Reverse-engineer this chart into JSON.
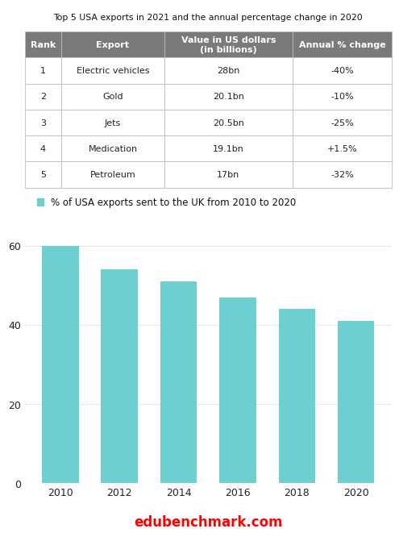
{
  "title": "Top 5 USA exports in 2021 and the annual percentage change in 2020",
  "table_headers": [
    "Rank",
    "Export",
    "Value in US dollars\n(in billions)",
    "Annual % change"
  ],
  "table_rows": [
    [
      "1",
      "Electric vehicles",
      "28bn",
      "-40%"
    ],
    [
      "2",
      "Gold",
      "20.1bn",
      "-10%"
    ],
    [
      "3",
      "Jets",
      "20.5bn",
      "-25%"
    ],
    [
      "4",
      "Medication",
      "19.1bn",
      "+1.5%"
    ],
    [
      "5",
      "Petroleum",
      "17bn",
      "-32%"
    ]
  ],
  "header_bg_color": "#7a7a7a",
  "header_text_color": "#ffffff",
  "row_bg_color": "#ffffff",
  "table_border_color": "#bbbbbb",
  "bar_legend_label": "% of USA exports sent to the UK from 2010 to 2020",
  "bar_legend_color": "#6dcfcf",
  "bar_years": [
    2010,
    2012,
    2014,
    2016,
    2018,
    2020
  ],
  "bar_values": [
    60,
    54,
    51,
    47,
    44,
    41
  ],
  "bar_color": "#6dcfcf",
  "bar_ylim": [
    0,
    65
  ],
  "bar_yticks": [
    0,
    20,
    40,
    60
  ],
  "watermark": "edubenchmark.com",
  "watermark_color": "#ff0000",
  "bg_color": "#ffffff",
  "title_fontsize": 7.8,
  "header_fontsize": 8.0,
  "cell_fontsize": 8.0,
  "tick_fontsize": 9,
  "legend_fontsize": 8.5
}
